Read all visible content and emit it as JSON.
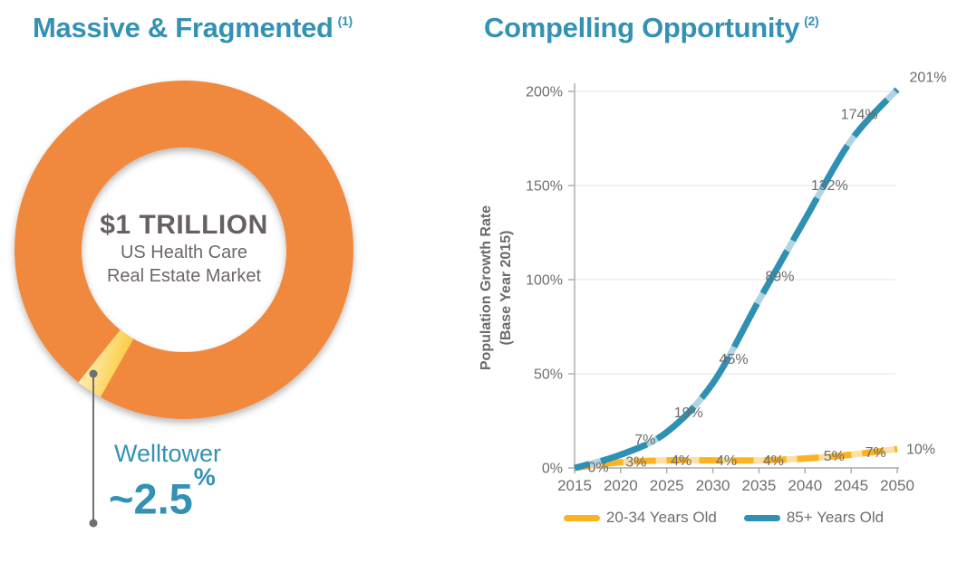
{
  "left_panel": {
    "title": "Massive & Fragmented",
    "note": "(1)",
    "donut_center": {
      "line1": "$1 TRILLION",
      "line2": "US Health Care",
      "line3": "Real Estate Market"
    },
    "callout": {
      "name": "Welltower",
      "value": "~2.5",
      "unit": "%",
      "share_percent": 2.5
    }
  },
  "right_panel": {
    "title": "Compelling Opportunity",
    "note": "(2)"
  },
  "chart_data": {
    "type": "line",
    "title": "",
    "ylabel": "Population Growth Rate",
    "ylabel2": "(Base Year 2015)",
    "xlabel": "",
    "x": [
      2015,
      2020,
      2025,
      2030,
      2035,
      2040,
      2045,
      2050
    ],
    "series": [
      {
        "name": "20-34 Years Old",
        "color": "#FCB322",
        "light_color": "#FBDFA4",
        "values": [
          0,
          3,
          4,
          4,
          4,
          5,
          7,
          10
        ],
        "labels": [
          "",
          "3%",
          "4%",
          "4%",
          "4%",
          "5%",
          "7%",
          "10%"
        ]
      },
      {
        "name": "85+ Years Old",
        "color": "#2E91B4",
        "light_color": "#AFD4E2",
        "values": [
          0,
          7,
          19,
          45,
          89,
          132,
          174,
          201
        ],
        "labels": [
          "0%",
          "7%",
          "19%",
          "45%",
          "89%",
          "132%",
          "174%",
          "201%"
        ]
      }
    ],
    "ylim": [
      0,
      200
    ],
    "ytick_values": [
      0,
      50,
      100,
      150,
      200
    ],
    "yticks": [
      "0%",
      "50%",
      "100%",
      "150%",
      "200%"
    ],
    "xticks": [
      "2015",
      "2020",
      "2025",
      "2030",
      "2035",
      "2040",
      "2045",
      "2050"
    ],
    "grid": true,
    "legend_position": "bottom"
  },
  "colors": {
    "accent_teal": "#3392B4",
    "donut_orange": "#F0893C",
    "slice_gradient": [
      "#FFEFC0",
      "#FCD45E",
      "#FBB12C"
    ],
    "axis_line": "#A9A9A9",
    "grid_line": "#EBEBEB",
    "tick_text": "#6E6E6E",
    "data_label_text": "#6B6B6B",
    "leader_line": "#6F6F6F",
    "center_text_dark": "#675F61",
    "center_text_sub": "#6F676A"
  }
}
